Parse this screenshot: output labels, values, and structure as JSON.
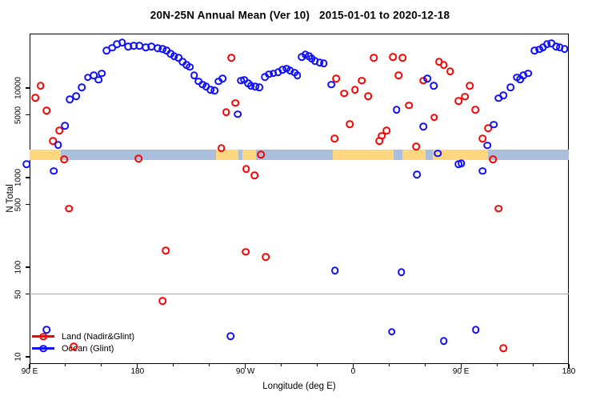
{
  "title": "20N-25N Annual Mean (Ver 10)   2015-01-01 to 2020-12-18",
  "legend": {
    "items": [
      {
        "label": "Land (Nadir&Glint)",
        "color": "#ff0000"
      },
      {
        "label": "Ocean (Glint)",
        "color": "#1010ff"
      }
    ]
  },
  "chart_data": {
    "type": "scatter",
    "title": "20N-25N Annual Mean (Ver 10)   2015-01-01 to 2020-12-18",
    "xlabel": "Longitude (deg E)",
    "ylabel": "N Total",
    "y_scale": "log",
    "ylim": [
      8.3,
      40500
    ],
    "grid": false,
    "legend_position": "bottom-left-inside",
    "x_axis_span_deg": 450,
    "x_tick_positions_deg": [
      0,
      90,
      180,
      270,
      360,
      450
    ],
    "x_tick_labels": [
      "90 E",
      "180",
      "90 W",
      "0",
      "90 E",
      "180"
    ],
    "x_minor_tick_positions_deg": [
      30,
      60,
      120,
      150,
      210,
      240,
      300,
      330,
      390,
      420
    ],
    "y_tick_values": [
      10000,
      5000,
      1000,
      500,
      100,
      50,
      10
    ],
    "y_tick_labels": [
      "10000",
      "5000",
      "1000",
      "500",
      "100",
      "50",
      "10"
    ],
    "reference_line_y": 50,
    "reference_line_color": "#a6a6a6",
    "band": {
      "comment": "dense overlapping points forming a horizontal band near N=1600-2050",
      "value_range": [
        1570,
        2050
      ],
      "base_color": "#a9bfdc",
      "orange_color": "#ffd77e",
      "orange_segments_deg": [
        [
          0,
          26
        ],
        [
          155.6,
          174.3
        ],
        [
          177.6,
          188.9
        ],
        [
          253.1,
          303.8
        ],
        [
          311.1,
          330.5
        ],
        [
          336.5,
          382.6
        ]
      ]
    },
    "series": [
      {
        "name": "Land (Nadir&Glint)",
        "color": "#ff0000",
        "points": [
          [
            9.3,
            10600
          ],
          [
            4.7,
            7800
          ],
          [
            14,
            5600
          ],
          [
            24.7,
            3360
          ],
          [
            19.4,
            2570
          ],
          [
            28.7,
            1600
          ],
          [
            32.7,
            450
          ],
          [
            90.8,
            1630
          ],
          [
            113.5,
            154
          ],
          [
            110.8,
            42
          ],
          [
            36.7,
            13
          ],
          [
            160.2,
            2140
          ],
          [
            168.3,
            21800
          ],
          [
            171.6,
            6800
          ],
          [
            164.2,
            5400
          ],
          [
            180.9,
            1250
          ],
          [
            187.6,
            1060
          ],
          [
            193,
            1810
          ],
          [
            180.3,
            148
          ],
          [
            197,
            130
          ],
          [
            255.7,
            12800
          ],
          [
            262.4,
            8700
          ],
          [
            271.7,
            9600
          ],
          [
            277.1,
            12100
          ],
          [
            282.4,
            8100
          ],
          [
            287.1,
            21800
          ],
          [
            267.1,
            3960
          ],
          [
            254.4,
            2730
          ],
          [
            303.1,
            22300
          ],
          [
            311.1,
            21800
          ],
          [
            307.8,
            13900
          ],
          [
            316.5,
            6400
          ],
          [
            328.5,
            12100
          ],
          [
            322.5,
            2230
          ],
          [
            293.8,
            2920
          ],
          [
            291.8,
            2570
          ],
          [
            297.8,
            3360
          ],
          [
            337.8,
            4700
          ],
          [
            341.8,
            19700
          ],
          [
            345.8,
            18100
          ],
          [
            351.1,
            15400
          ],
          [
            367.2,
            10600
          ],
          [
            363.2,
            8000
          ],
          [
            357.9,
            7200
          ],
          [
            371.9,
            5700
          ],
          [
            382.6,
            3580
          ],
          [
            377.9,
            2730
          ],
          [
            386.6,
            1600
          ],
          [
            391.3,
            450
          ],
          [
            395.3,
            12.5
          ]
        ]
      },
      {
        "name": "Ocean (Glint)",
        "color": "#1010ff",
        "points": [
          [
            -2.7,
            1410
          ],
          [
            20,
            1190
          ],
          [
            29.4,
            3800
          ],
          [
            24,
            2320
          ],
          [
            14,
            20
          ],
          [
            33.4,
            7500
          ],
          [
            38.7,
            8100
          ],
          [
            43.4,
            10200
          ],
          [
            48.7,
            13100
          ],
          [
            53.4,
            13900
          ],
          [
            57.4,
            12300
          ],
          [
            60.1,
            14500
          ],
          [
            64.1,
            26300
          ],
          [
            68.8,
            28000
          ],
          [
            72.8,
            30900
          ],
          [
            77.4,
            32200
          ],
          [
            82.1,
            29100
          ],
          [
            86.8,
            29700
          ],
          [
            91.5,
            29700
          ],
          [
            96.8,
            28500
          ],
          [
            101.5,
            29100
          ],
          [
            106.8,
            27900
          ],
          [
            110.8,
            27400
          ],
          [
            114.2,
            26300
          ],
          [
            117.5,
            24200
          ],
          [
            120.8,
            22700
          ],
          [
            124.2,
            21800
          ],
          [
            127.5,
            19700
          ],
          [
            130.9,
            18100
          ],
          [
            133.5,
            17100
          ],
          [
            137.5,
            13900
          ],
          [
            140.9,
            11900
          ],
          [
            144.2,
            10900
          ],
          [
            147.5,
            10400
          ],
          [
            150.9,
            9600
          ],
          [
            154.2,
            9400
          ],
          [
            157.6,
            11900
          ],
          [
            160.9,
            12800
          ],
          [
            173.6,
            5100
          ],
          [
            176.3,
            12100
          ],
          [
            178.9,
            12300
          ],
          [
            182.3,
            11300
          ],
          [
            184.9,
            10600
          ],
          [
            188.3,
            10400
          ],
          [
            191.6,
            10200
          ],
          [
            196.3,
            13300
          ],
          [
            199.6,
            14200
          ],
          [
            203.6,
            14500
          ],
          [
            207.6,
            15100
          ],
          [
            211,
            16000
          ],
          [
            214.3,
            16400
          ],
          [
            217.6,
            15700
          ],
          [
            221,
            14800
          ],
          [
            223.6,
            13900
          ],
          [
            227,
            22300
          ],
          [
            230.3,
            23700
          ],
          [
            233,
            22700
          ],
          [
            235.6,
            21400
          ],
          [
            238.3,
            20100
          ],
          [
            242.3,
            19300
          ],
          [
            245.6,
            18900
          ],
          [
            251.7,
            10900
          ],
          [
            306.4,
            5700
          ],
          [
            331.8,
            12800
          ],
          [
            337.2,
            10600
          ],
          [
            328.5,
            3700
          ],
          [
            340.5,
            1860
          ],
          [
            323.2,
            1080
          ],
          [
            357.9,
            1410
          ],
          [
            360.5,
            1440
          ],
          [
            377.9,
            1190
          ],
          [
            387.3,
            3900
          ],
          [
            381.9,
            2280
          ],
          [
            391.3,
            7700
          ],
          [
            395.3,
            8300
          ],
          [
            401.3,
            10200
          ],
          [
            406.6,
            13100
          ],
          [
            409.3,
            12500
          ],
          [
            412,
            13900
          ],
          [
            416,
            14500
          ],
          [
            421.3,
            26300
          ],
          [
            425.3,
            26900
          ],
          [
            428.6,
            28500
          ],
          [
            431.9,
            30900
          ],
          [
            435.3,
            31500
          ],
          [
            439.3,
            29100
          ],
          [
            442.6,
            28500
          ],
          [
            446.6,
            27400
          ],
          [
            255,
            92
          ],
          [
            310.4,
            88
          ],
          [
            302.4,
            19
          ],
          [
            345.8,
            15
          ],
          [
            372.5,
            20
          ],
          [
            167.6,
            17
          ]
        ]
      }
    ]
  }
}
